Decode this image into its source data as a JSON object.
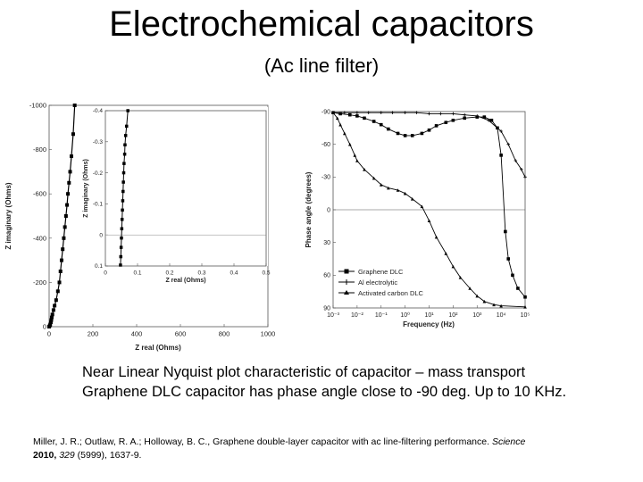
{
  "slide": {
    "title": "Electrochemical capacitors",
    "subtitle": "(Ac line filter)",
    "caption_line1": "Near Linear Nyquist plot characteristic of capacitor – mass transport",
    "caption_line2": "Graphene DLC capacitor has phase angle close to -90 deg. Up to 10  KHz.",
    "citation": {
      "authors": "Miller, J. R.; Outlaw, R. A.; Holloway, B. C., Graphene double-layer capacitor with ac line-filtering performance.",
      "journal": "Science",
      "year": "2010,",
      "volume": "329",
      "pages": "(5999), 1637-9."
    }
  },
  "chart_data": [
    {
      "type": "scatter",
      "title": "",
      "xlabel": "Z real (Ohms)",
      "ylabel": "Z imaginary (Ohms)",
      "xlim": [
        0,
        1000
      ],
      "ylim": [
        0,
        -1000
      ],
      "x_ticks": [
        "0",
        "200",
        "400",
        "600",
        "800",
        "1000"
      ],
      "y_ticks": [
        "0",
        "-200",
        "-400",
        "-600",
        "-800",
        "-1000"
      ],
      "grid": false,
      "series": [
        {
          "marker": "square",
          "color": "#000000",
          "points": [
            [
              0,
              0
            ],
            [
              3,
              -5
            ],
            [
              5,
              -10
            ],
            [
              8,
              -20
            ],
            [
              10,
              -30
            ],
            [
              12,
              -42
            ],
            [
              15,
              -55
            ],
            [
              20,
              -75
            ],
            [
              25,
              -95
            ],
            [
              32,
              -120
            ],
            [
              40,
              -160
            ],
            [
              47,
              -200
            ],
            [
              52,
              -250
            ],
            [
              57,
              -300
            ],
            [
              62,
              -350
            ],
            [
              67,
              -400
            ],
            [
              72,
              -450
            ],
            [
              77,
              -500
            ],
            [
              82,
              -550
            ],
            [
              86,
              -600
            ],
            [
              91,
              -650
            ],
            [
              96,
              -700
            ],
            [
              102,
              -770
            ],
            [
              110,
              -870
            ],
            [
              117,
              -1000
            ]
          ]
        }
      ]
    },
    {
      "type": "scatter",
      "title": "",
      "xlabel": "Z real (Ohms)",
      "ylabel": "Z imaginary (Ohms)",
      "xlim": [
        0,
        0.5
      ],
      "ylim": [
        0.1,
        -0.4
      ],
      "x_ticks": [
        "0",
        "0.1",
        "0.2",
        "0.3",
        "0.4",
        "0.5"
      ],
      "y_ticks": [
        "0.1",
        "0",
        "-0.1",
        "-0.2",
        "-0.3",
        "-0.4"
      ],
      "grid": false,
      "series": [
        {
          "marker": "square",
          "color": "#000000",
          "points": [
            [
              0.047,
              0.097
            ],
            [
              0.048,
              0.07
            ],
            [
              0.049,
              0.04
            ],
            [
              0.05,
              0.01
            ],
            [
              0.051,
              -0.02
            ],
            [
              0.052,
              -0.05
            ],
            [
              0.053,
              -0.08
            ],
            [
              0.054,
              -0.11
            ],
            [
              0.055,
              -0.14
            ],
            [
              0.056,
              -0.17
            ],
            [
              0.057,
              -0.2
            ],
            [
              0.058,
              -0.23
            ],
            [
              0.06,
              -0.26
            ],
            [
              0.061,
              -0.29
            ],
            [
              0.063,
              -0.32
            ],
            [
              0.066,
              -0.35
            ],
            [
              0.07,
              -0.4
            ]
          ]
        }
      ]
    },
    {
      "type": "line",
      "title": "",
      "xlabel": "Frequency (Hz)",
      "ylabel": "Phase angle (degrees)",
      "x_scale": "log",
      "xlim": [
        0.001,
        100000
      ],
      "ylim": [
        -90,
        90
      ],
      "x_ticks": [
        "10⁻³",
        "10⁻²",
        "10⁻¹",
        "10⁰",
        "10¹",
        "10²",
        "10³",
        "10⁴",
        "10⁵"
      ],
      "y_ticks": [
        "-90",
        "-60",
        "-30",
        "0",
        "30",
        "60",
        "90"
      ],
      "zero_line": true,
      "legend": "bottom-left",
      "series": [
        {
          "name": "Graphene DLC",
          "marker": "square",
          "color": "#000000",
          "points": [
            [
              0.001,
              -89
            ],
            [
              0.002,
              -88
            ],
            [
              0.005,
              -87
            ],
            [
              0.01,
              -86
            ],
            [
              0.02,
              -84
            ],
            [
              0.05,
              -81
            ],
            [
              0.1,
              -78
            ],
            [
              0.2,
              -74
            ],
            [
              0.5,
              -70
            ],
            [
              1,
              -68
            ],
            [
              2,
              -68
            ],
            [
              5,
              -70
            ],
            [
              10,
              -73
            ],
            [
              20,
              -77
            ],
            [
              50,
              -80
            ],
            [
              100,
              -82
            ],
            [
              300,
              -84
            ],
            [
              1000,
              -85
            ],
            [
              2000,
              -85
            ],
            [
              4000,
              -82
            ],
            [
              7000,
              -75
            ],
            [
              10000,
              -50
            ],
            [
              15000,
              20
            ],
            [
              20000,
              45
            ],
            [
              30000,
              60
            ],
            [
              50000,
              72
            ],
            [
              100000,
              80
            ]
          ]
        },
        {
          "name": "Al electrolytic",
          "marker": "plus",
          "color": "#000000",
          "points": [
            [
              0.001,
              -89
            ],
            [
              0.003,
              -89
            ],
            [
              0.01,
              -89
            ],
            [
              0.03,
              -89
            ],
            [
              0.1,
              -89
            ],
            [
              0.3,
              -89
            ],
            [
              1,
              -89
            ],
            [
              3,
              -89
            ],
            [
              10,
              -88
            ],
            [
              30,
              -88
            ],
            [
              100,
              -88
            ],
            [
              300,
              -87
            ],
            [
              1000,
              -86
            ],
            [
              3000,
              -82
            ],
            [
              10000,
              -72
            ],
            [
              20000,
              -60
            ],
            [
              40000,
              -45
            ],
            [
              70000,
              -37
            ],
            [
              100000,
              -30
            ]
          ]
        },
        {
          "name": "Activated carbon DLC",
          "marker": "triangle",
          "color": "#000000",
          "points": [
            [
              0.001,
              -89
            ],
            [
              0.0015,
              -84
            ],
            [
              0.002,
              -78
            ],
            [
              0.003,
              -70
            ],
            [
              0.005,
              -60
            ],
            [
              0.008,
              -50
            ],
            [
              0.01,
              -45
            ],
            [
              0.02,
              -37
            ],
            [
              0.05,
              -29
            ],
            [
              0.1,
              -23
            ],
            [
              0.2,
              -20
            ],
            [
              0.5,
              -18
            ],
            [
              1,
              -15
            ],
            [
              2,
              -10
            ],
            [
              5,
              -3
            ],
            [
              10,
              10
            ],
            [
              20,
              25
            ],
            [
              50,
              40
            ],
            [
              100,
              52
            ],
            [
              200,
              62
            ],
            [
              500,
              72
            ],
            [
              1000,
              79
            ],
            [
              2000,
              84
            ],
            [
              5000,
              87
            ],
            [
              10000,
              88
            ],
            [
              100000,
              89
            ]
          ]
        }
      ]
    }
  ]
}
